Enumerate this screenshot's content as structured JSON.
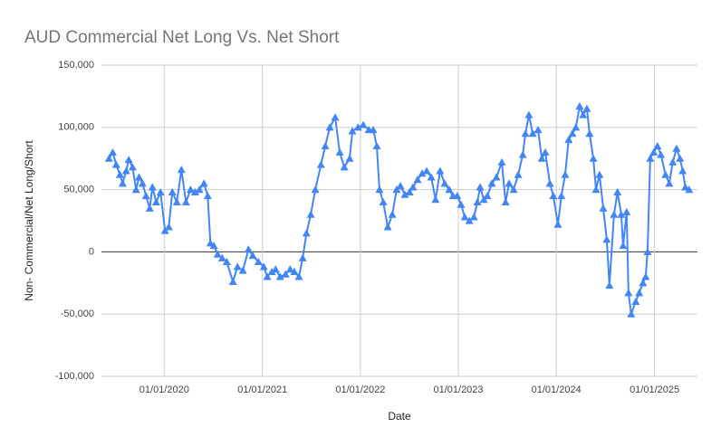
{
  "chart_data": {
    "type": "line",
    "title": "AUD Commercial Net Long Vs. Net Short",
    "x_label": "Date",
    "y_label": "Non- Commercial/Net Long/Short",
    "x": [
      "2019-06-09",
      "2019-06-23",
      "2019-07-06",
      "2019-07-20",
      "2019-07-30",
      "2019-08-12",
      "2019-08-22",
      "2019-09-05",
      "2019-09-18",
      "2019-09-29",
      "2019-10-12",
      "2019-10-25",
      "2019-11-08",
      "2019-11-18",
      "2019-12-02",
      "2019-12-18",
      "2020-01-04",
      "2020-01-18",
      "2020-01-31",
      "2020-02-17",
      "2020-03-05",
      "2020-03-22",
      "2020-04-08",
      "2020-04-25",
      "2020-05-11",
      "2020-05-28",
      "2020-06-11",
      "2020-06-21",
      "2020-07-04",
      "2020-07-18",
      "2020-08-04",
      "2020-08-21",
      "2020-09-13",
      "2020-09-30",
      "2020-10-20",
      "2020-11-10",
      "2020-11-26",
      "2020-12-17",
      "2021-01-06",
      "2021-01-19",
      "2021-02-05",
      "2021-02-19",
      "2021-03-08",
      "2021-03-28",
      "2021-04-14",
      "2021-04-30",
      "2021-05-17",
      "2021-05-31",
      "2021-06-14",
      "2021-06-30",
      "2021-07-17",
      "2021-08-07",
      "2021-08-23",
      "2021-09-09",
      "2021-09-29",
      "2021-10-16",
      "2021-11-02",
      "2021-11-22",
      "2021-12-02",
      "2021-12-23",
      "2022-01-12",
      "2022-02-01",
      "2022-02-18",
      "2022-03-03",
      "2022-03-13",
      "2022-03-27",
      "2022-04-13",
      "2022-04-30",
      "2022-05-16",
      "2022-05-30",
      "2022-06-16",
      "2022-07-03",
      "2022-07-16",
      "2022-08-02",
      "2022-08-19",
      "2022-09-05",
      "2022-09-22",
      "2022-10-08",
      "2022-10-25",
      "2022-11-11",
      "2022-11-28",
      "2022-12-12",
      "2022-12-28",
      "2023-01-11",
      "2023-01-25",
      "2023-02-11",
      "2023-02-28",
      "2023-03-13",
      "2023-03-23",
      "2023-04-06",
      "2023-04-19",
      "2023-05-06",
      "2023-05-23",
      "2023-06-12",
      "2023-06-26",
      "2023-07-09",
      "2023-07-26",
      "2023-08-12",
      "2023-08-29",
      "2023-09-08",
      "2023-09-21",
      "2023-10-05",
      "2023-10-25",
      "2023-11-08",
      "2023-11-21",
      "2023-12-08",
      "2023-12-21",
      "2024-01-07",
      "2024-01-20",
      "2024-02-03",
      "2024-02-16",
      "2024-03-01",
      "2024-03-14",
      "2024-03-28",
      "2024-04-10",
      "2024-04-24",
      "2024-05-04",
      "2024-05-18",
      "2024-05-28",
      "2024-06-10",
      "2024-06-24",
      "2024-07-07",
      "2024-07-17",
      "2024-08-03",
      "2024-08-16",
      "2024-08-30",
      "2024-09-06",
      "2024-09-19",
      "2024-09-26",
      "2024-10-06",
      "2024-10-23",
      "2024-11-05",
      "2024-11-19",
      "2024-11-29",
      "2024-12-06",
      "2024-12-16",
      "2024-12-29",
      "2025-01-12",
      "2025-01-25",
      "2025-02-11",
      "2025-02-25",
      "2025-03-10",
      "2025-03-24",
      "2025-04-06",
      "2025-04-16",
      "2025-04-26",
      "2025-05-10"
    ],
    "series": [
      {
        "name": "Non- Commercial/Net Long/Short",
        "color": "#4285f4",
        "values": [
          75000,
          80000,
          70000,
          62000,
          55000,
          65000,
          74000,
          68000,
          50000,
          60000,
          55000,
          45000,
          35000,
          52000,
          40000,
          48000,
          17000,
          20000,
          48000,
          40000,
          66000,
          40000,
          50000,
          48000,
          50000,
          55000,
          45000,
          7000,
          5000,
          -2000,
          -5000,
          -8000,
          -24000,
          -12000,
          -15000,
          2000,
          -3000,
          -8000,
          -12000,
          -20000,
          -16000,
          -14000,
          -20000,
          -18000,
          -14000,
          -16000,
          -20000,
          -5000,
          15000,
          30000,
          50000,
          70000,
          85000,
          100000,
          108000,
          80000,
          68000,
          75000,
          97000,
          100000,
          102000,
          98000,
          98000,
          85000,
          50000,
          40000,
          20000,
          30000,
          50000,
          53000,
          46000,
          48000,
          52000,
          58000,
          63000,
          65000,
          60000,
          42000,
          65000,
          55000,
          50000,
          45000,
          45000,
          38000,
          28000,
          25000,
          28000,
          40000,
          52000,
          42000,
          45000,
          55000,
          60000,
          72000,
          40000,
          55000,
          50000,
          62000,
          78000,
          95000,
          110000,
          95000,
          98000,
          75000,
          80000,
          55000,
          45000,
          22000,
          45000,
          62000,
          90000,
          95000,
          100000,
          117000,
          110000,
          115000,
          95000,
          75000,
          50000,
          62000,
          35000,
          10000,
          -27000,
          30000,
          48000,
          30000,
          5000,
          32000,
          -33000,
          -50000,
          -40000,
          -33000,
          -25000,
          -20000,
          0,
          75000,
          80000,
          85000,
          78000,
          62000,
          55000,
          72000,
          83000,
          75000,
          65000,
          52000,
          50000
        ]
      }
    ],
    "xlim": [
      "2019-05-12",
      "2025-06-10"
    ],
    "xticks": [
      {
        "value": "2020-01-01",
        "label": "01/01/2020"
      },
      {
        "value": "2021-01-01",
        "label": "01/01/2021"
      },
      {
        "value": "2022-01-01",
        "label": "01/01/2022"
      },
      {
        "value": "2023-01-01",
        "label": "01/01/2023"
      },
      {
        "value": "2024-01-01",
        "label": "01/01/2024"
      },
      {
        "value": "2025-01-01",
        "label": "01/01/2025"
      }
    ],
    "ylim": [
      -100000,
      150000
    ],
    "yticks": [
      {
        "value": -100000,
        "label": "-100,000"
      },
      {
        "value": -50000,
        "label": "-50,000"
      },
      0,
      {
        "value": 50000,
        "label": "50,000"
      },
      {
        "value": 100000,
        "label": "100,000"
      },
      {
        "value": 150000,
        "label": "150,000"
      }
    ],
    "grid": true,
    "marker": "triangle"
  }
}
